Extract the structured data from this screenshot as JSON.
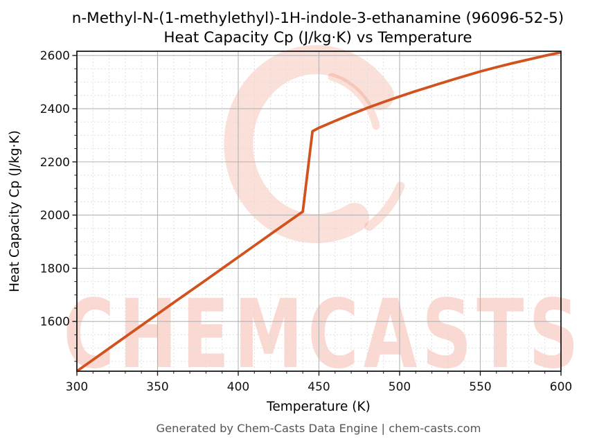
{
  "figure": {
    "title_line1": "n-Methyl-N-(1-methylethyl)-1H-indole-3-ethanamine (96096-52-5)",
    "title_line2": "Heat Capacity Cp (J/kg·K) vs Temperature"
  },
  "watermark": {
    "text": "CHEMCASTS",
    "logo": "brush-stroke-C",
    "text_color": "rgba(228, 98, 62, 0.24)",
    "logo_color": "rgba(228, 98, 62, 0.20)"
  },
  "footer": {
    "text": "Generated by Chem-Casts Data Engine | chem-casts.com"
  },
  "colors": {
    "line": "#d2521e",
    "grid_major": "#b3b3b3",
    "grid_minor": "#dcdcdc",
    "spine": "#1a1a1a",
    "tick": "#1a1a1a",
    "tick_label": "#111111"
  },
  "chart_data": {
    "type": "line",
    "title": "n-Methyl-N-(1-methylethyl)-1H-indole-3-ethanamine (96096-52-5) — Heat Capacity Cp (J/kg·K) vs Temperature",
    "xlabel": "Temperature (K)",
    "ylabel": "Heat Capacity Cp (J/kg·K)",
    "xlim": [
      300,
      600
    ],
    "ylim": [
      1413,
      2616
    ],
    "xticks": [
      300,
      350,
      400,
      450,
      500,
      550,
      600
    ],
    "yticks": [
      1600,
      1800,
      2000,
      2200,
      2400,
      2600
    ],
    "x_minor_step": 10,
    "y_minor_step": 50,
    "grid": true,
    "legend": false,
    "series": [
      {
        "name": "Heat Capacity Cp",
        "color": "#d2521e",
        "x": [
          300,
          320,
          340,
          360,
          380,
          400,
          420,
          440,
          446,
          450,
          460,
          470,
          480,
          490,
          500,
          510,
          520,
          530,
          540,
          550,
          560,
          570,
          580,
          590,
          600
        ],
        "y": [
          1413,
          1499,
          1585,
          1671,
          1756,
          1842,
          1928,
          2013,
          2315,
          2328,
          2354,
          2379,
          2403,
          2425,
          2446,
          2466,
          2485,
          2504,
          2522,
          2540,
          2556,
          2571,
          2585,
          2599,
          2612
        ]
      }
    ]
  }
}
